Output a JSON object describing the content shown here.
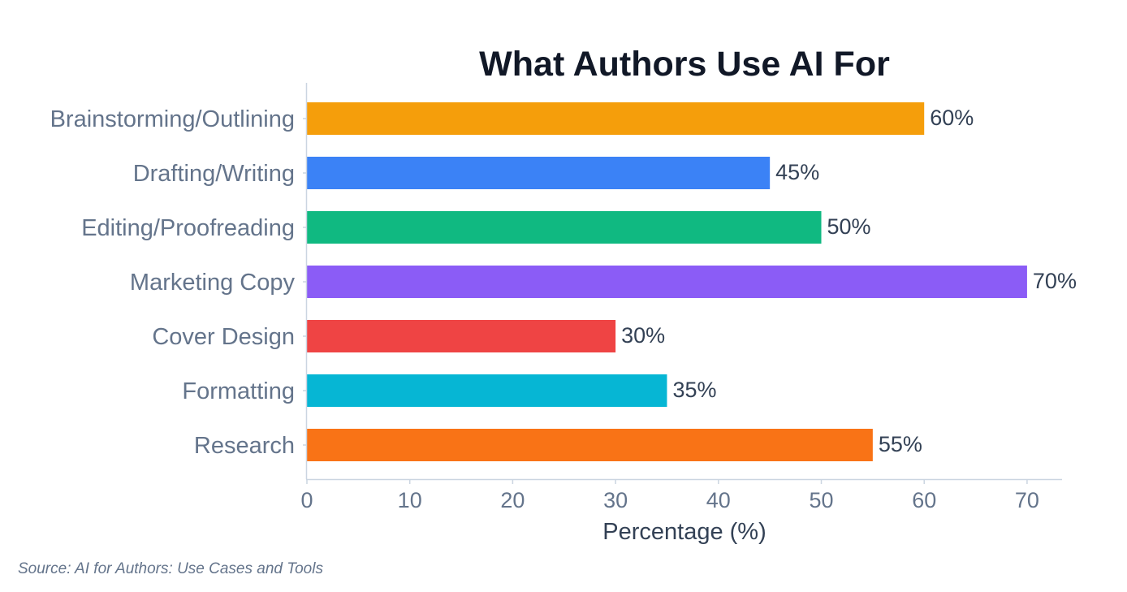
{
  "chart_data": {
    "type": "bar",
    "orientation": "horizontal",
    "title": "What Authors Use AI For",
    "xlabel": "Percentage (%)",
    "ylabel": "",
    "categories": [
      "Brainstorming/Outlining",
      "Drafting/Writing",
      "Editing/Proofreading",
      "Marketing Copy",
      "Cover Design",
      "Formatting",
      "Research"
    ],
    "values": [
      60,
      45,
      50,
      70,
      30,
      35,
      55
    ],
    "value_labels": [
      "60%",
      "45%",
      "50%",
      "70%",
      "30%",
      "35%",
      "55%"
    ],
    "colors": [
      "#f59e0b",
      "#3b82f6",
      "#10b981",
      "#8b5cf6",
      "#ef4444",
      "#06b6d4",
      "#f97316"
    ],
    "xlim": [
      0,
      73.4
    ],
    "xticks": [
      0,
      10,
      20,
      30,
      40,
      50,
      60,
      70
    ],
    "grid": false,
    "legend": "none"
  },
  "source": "Source: AI for Authors: Use Cases and Tools"
}
